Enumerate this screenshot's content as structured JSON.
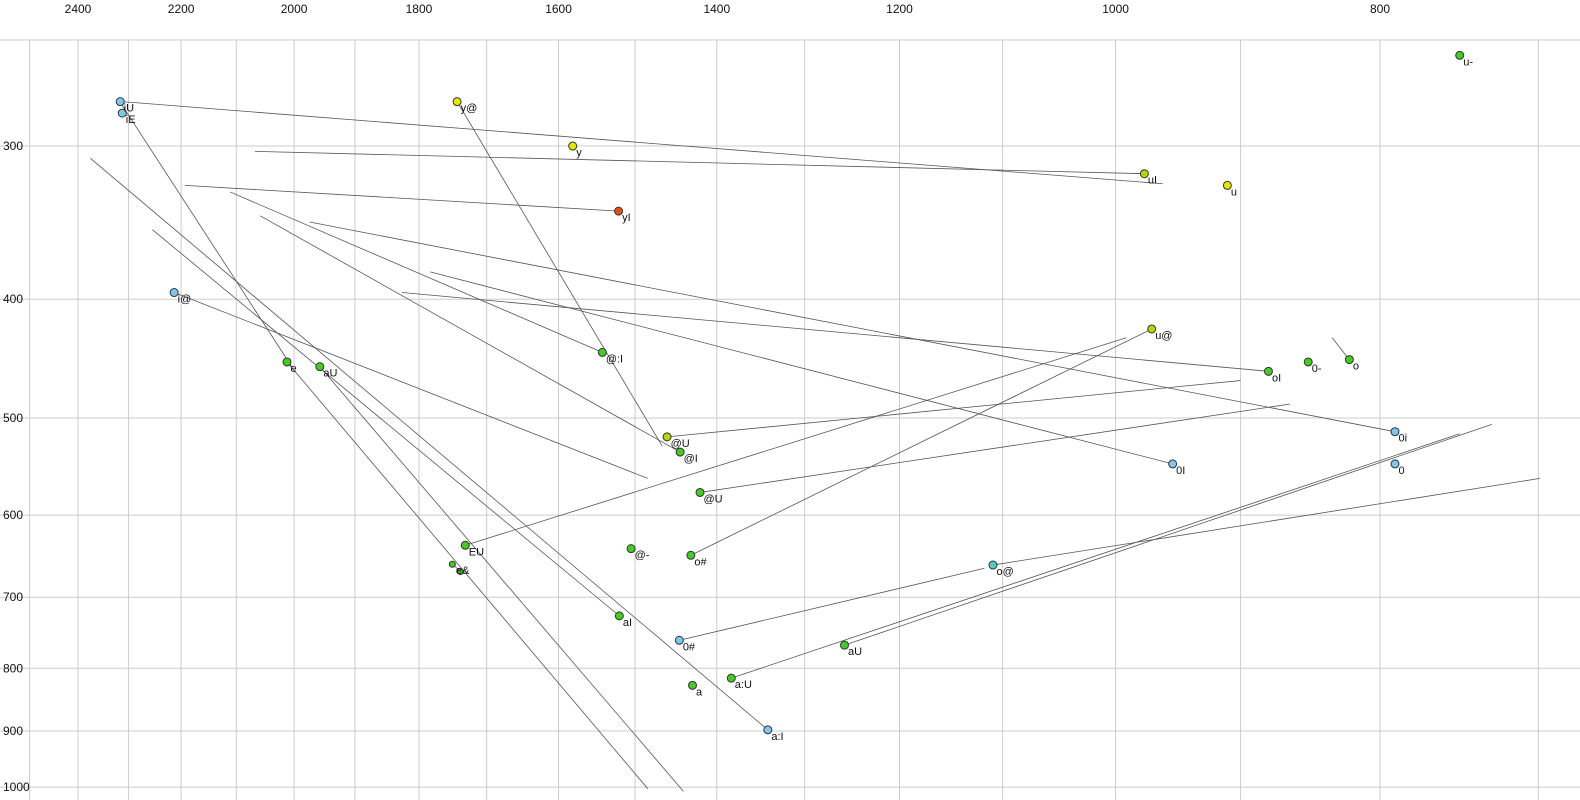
{
  "chart_data": {
    "type": "scatter",
    "title": "",
    "xlabel": "",
    "ylabel": "",
    "x_scale": "log",
    "y_scale": "log",
    "x_reversed": true,
    "y_inverted": true,
    "x_tick_labels": [
      2400,
      2200,
      2000,
      1800,
      1600,
      1400,
      1200,
      1000,
      800
    ],
    "y_tick_labels": [
      300,
      400,
      500,
      600,
      700,
      800,
      900,
      1000
    ],
    "x_range": [
      2563,
      676
    ],
    "y_range": [
      246,
      1013
    ],
    "grid": {
      "x_min": 700,
      "x_max": 2500,
      "x_step": 100,
      "y_min": 300,
      "y_max": 1000,
      "y_step": 100,
      "visible": true
    },
    "colors": {
      "green": "#44cc22",
      "yellow": "#e6e600",
      "yellowgreen": "#b8d400",
      "blue": "#7ec8f0",
      "cyan": "#58c8c8",
      "red": "#e05010",
      "point_stroke": "#333333",
      "grid_line": "#cccccc",
      "trajectory_line": "#555555",
      "background": "#ffffff"
    },
    "points": [
      {
        "label": "u-",
        "f2": 748,
        "f1": 253,
        "color": "green"
      },
      {
        "label": "iU",
        "f2": 2316,
        "f1": 276,
        "color": "blue"
      },
      {
        "label": "iE",
        "f2": 2312,
        "f1": 282,
        "color": "blue"
      },
      {
        "label": "y@",
        "f2": 1743,
        "f1": 276,
        "color": "yellow"
      },
      {
        "label": "y",
        "f2": 1581,
        "f1": 300,
        "color": "yellow"
      },
      {
        "label": "uI",
        "f2": 976,
        "f1": 316,
        "color": "yellowgreen"
      },
      {
        "label": "u",
        "f2": 910,
        "f1": 323,
        "color": "yellow"
      },
      {
        "label": "yI",
        "f2": 1521,
        "f1": 339,
        "color": "red"
      },
      {
        "label": "i@",
        "f2": 2213,
        "f1": 395,
        "color": "blue"
      },
      {
        "label": "u@",
        "f2": 970,
        "f1": 423,
        "color": "yellowgreen"
      },
      {
        "label": "0-",
        "f2": 850,
        "f1": 450,
        "color": "green"
      },
      {
        "label": "o",
        "f2": 821,
        "f1": 448,
        "color": "green"
      },
      {
        "label": "oI",
        "f2": 879,
        "f1": 458,
        "color": "green"
      },
      {
        "label": "e",
        "f2": 2012,
        "f1": 450,
        "color": "green"
      },
      {
        "label": "aU",
        "f2": 1957,
        "f1": 454,
        "color": "green"
      },
      {
        "label": "@:I",
        "f2": 1542,
        "f1": 442,
        "color": "green"
      },
      {
        "label": "@U",
        "f2": 1460,
        "f1": 518,
        "color": "yellowgreen"
      },
      {
        "label": "@I",
        "f2": 1444,
        "f1": 533,
        "color": "green"
      },
      {
        "label": "@U",
        "f2": 1420,
        "f1": 575,
        "color": "green"
      },
      {
        "label": "0i",
        "f2": 790,
        "f1": 513,
        "color": "blue"
      },
      {
        "label": "0I",
        "f2": 953,
        "f1": 545,
        "color": "blue"
      },
      {
        "label": "0",
        "f2": 790,
        "f1": 545,
        "color": "blue"
      },
      {
        "label": "EU",
        "f2": 1731,
        "f1": 635,
        "color": "green"
      },
      {
        "label": "@-",
        "f2": 1505,
        "f1": 639,
        "color": "green"
      },
      {
        "label": "o#",
        "f2": 1431,
        "f1": 647,
        "color": "green"
      },
      {
        "label": "e&",
        "f2": 1750,
        "f1": 658,
        "color": "green",
        "r": 3
      },
      {
        "label": "",
        "f2": 1738,
        "f1": 667,
        "color": "green",
        "r": 3
      },
      {
        "label": "o@",
        "f2": 1109,
        "f1": 659,
        "color": "cyan"
      },
      {
        "label": "aI",
        "f2": 1520,
        "f1": 725,
        "color": "green"
      },
      {
        "label": "0#",
        "f2": 1445,
        "f1": 759,
        "color": "blue"
      },
      {
        "label": "aU",
        "f2": 1257,
        "f1": 766,
        "color": "green"
      },
      {
        "label": "a",
        "f2": 1429,
        "f1": 826,
        "color": "green"
      },
      {
        "label": "a:U",
        "f2": 1383,
        "f1": 815,
        "color": "green"
      },
      {
        "label": "a:I",
        "f2": 1341,
        "f1": 898,
        "color": "blue"
      }
    ],
    "segments": [
      [
        2312,
        276,
        961,
        322
      ],
      [
        2312,
        278,
        2004,
        454
      ],
      [
        2213,
        395,
        1484,
        560
      ],
      [
        1743,
        276,
        1466,
        527
      ],
      [
        1521,
        339,
        2193,
        323
      ],
      [
        976,
        316,
        2067,
        303
      ],
      [
        970,
        423,
        1431,
        647
      ],
      [
        1542,
        442,
        2111,
        327
      ],
      [
        1460,
        518,
        900,
        466
      ],
      [
        1444,
        533,
        2058,
        342
      ],
      [
        1420,
        575,
        863,
        487
      ],
      [
        879,
        458,
        1826,
        395
      ],
      [
        790,
        513,
        1974,
        346
      ],
      [
        1341,
        898,
        2375,
        307
      ],
      [
        1520,
        725,
        2254,
        351
      ],
      [
        1257,
        766,
        728,
        506
      ],
      [
        1383,
        815,
        748,
        515
      ],
      [
        1109,
        659,
        699,
        560
      ],
      [
        1731,
        635,
        991,
        430
      ],
      [
        953,
        545,
        1783,
        380
      ],
      [
        833,
        430,
        821,
        448
      ],
      [
        1750,
        658,
        1738,
        667
      ],
      [
        1445,
        759,
        1117,
        663
      ],
      [
        2012,
        450,
        1484,
        1003
      ],
      [
        1957,
        454,
        1440,
        1008
      ]
    ]
  }
}
